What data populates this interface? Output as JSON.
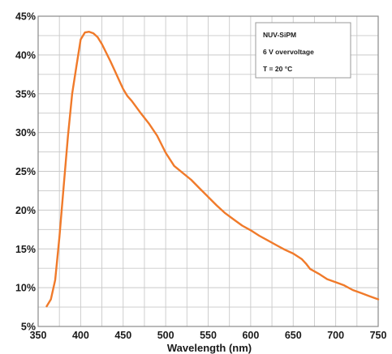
{
  "chart_data": {
    "type": "line",
    "xlabel": "Wavelength (nm)",
    "ylabel": "",
    "xlim": [
      350,
      750
    ],
    "ylim": [
      5,
      45
    ],
    "x_ticks": [
      "350",
      "400",
      "450",
      "500",
      "550",
      "600",
      "650",
      "700",
      "750"
    ],
    "y_ticks": [
      "5%",
      "10%",
      "15%",
      "20%",
      "25%",
      "30%",
      "35%",
      "40%",
      "45%"
    ],
    "grid": true,
    "legend_position": "top-right",
    "annotations": [
      "NUV-SiPM",
      "6 V overvoltage",
      "T = 20 °C"
    ],
    "line_color": "#f07a2a",
    "series": [
      {
        "x": [
          360,
          365,
          370,
          375,
          380,
          385,
          390,
          395,
          400,
          405,
          410,
          415,
          420,
          425,
          430,
          435,
          440,
          445,
          450,
          455,
          460,
          470,
          480,
          490,
          500,
          510,
          520,
          530,
          540,
          550,
          560,
          570,
          580,
          590,
          600,
          610,
          620,
          630,
          640,
          650,
          660,
          665,
          670,
          680,
          690,
          700,
          710,
          720,
          730,
          740,
          750
        ],
        "values": [
          7.6,
          8.5,
          11.0,
          16.5,
          23.0,
          29.5,
          35.0,
          38.5,
          42.0,
          42.9,
          43.0,
          42.8,
          42.3,
          41.4,
          40.3,
          39.2,
          38.0,
          36.8,
          35.6,
          34.7,
          34.1,
          32.6,
          31.2,
          29.6,
          27.4,
          25.7,
          24.8,
          23.9,
          22.8,
          21.7,
          20.6,
          19.6,
          18.8,
          18.0,
          17.4,
          16.7,
          16.1,
          15.5,
          14.9,
          14.4,
          13.7,
          13.1,
          12.4,
          11.8,
          11.1,
          10.7,
          10.3,
          9.7,
          9.3,
          8.9,
          8.5
        ]
      }
    ]
  }
}
